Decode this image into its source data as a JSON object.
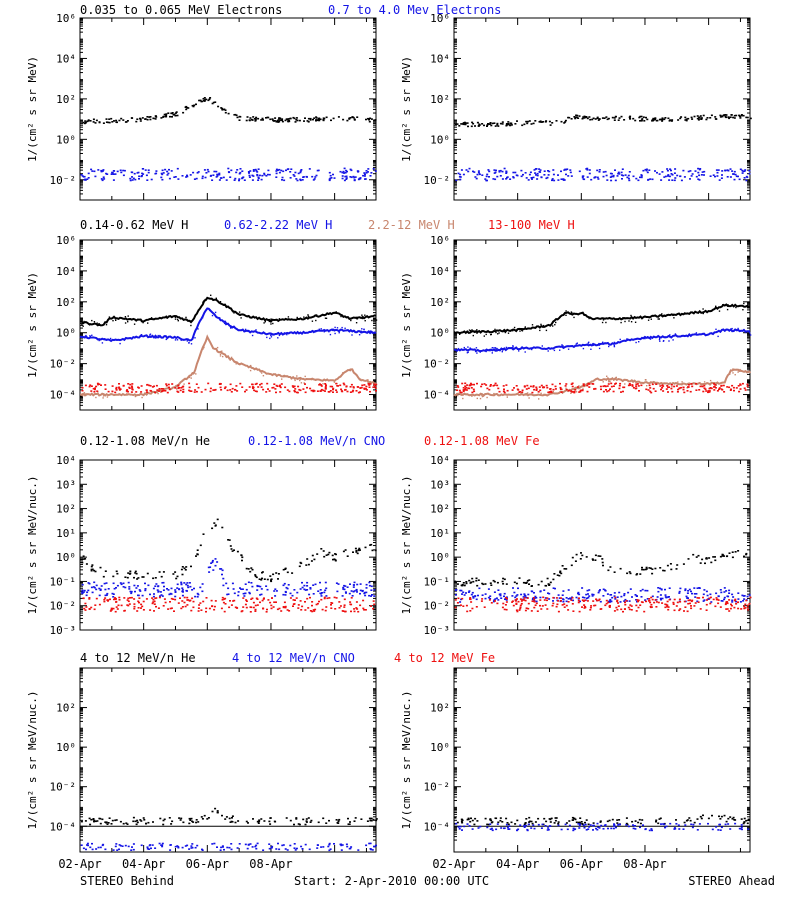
{
  "colors": {
    "black": "#000000",
    "blue": "#1414e6",
    "tan": "#c8866e",
    "red": "#ee1010",
    "background": "#ffffff"
  },
  "footer": {
    "left": "STEREO Behind",
    "center": "Start:  2-Apr-2010 00:00 UTC",
    "right": "STEREO Ahead"
  },
  "x_ticks": [
    "02-Apr",
    "04-Apr",
    "06-Apr",
    "08-Apr"
  ],
  "chart_data": [
    {
      "type": "scatter",
      "row": 1,
      "titles": [
        {
          "text": "0.035 to 0.065 MeV Electrons",
          "color": "black"
        },
        {
          "text": "0.7 to 4.0 Mev Electrons",
          "color": "blue"
        }
      ],
      "ylabel": "1/(cm² s sr MeV)",
      "yscale": "log",
      "ylim": [
        0.001,
        1000000
      ],
      "yticks": [
        {
          "value": 0.01,
          "label": "10⁻²"
        },
        {
          "value": 1,
          "label": "10⁰"
        },
        {
          "value": 100,
          "label": "10²"
        },
        {
          "value": 10000,
          "label": "10⁴"
        },
        {
          "value": 1000000,
          "label": "10⁶"
        }
      ],
      "xlabel": "",
      "xlim_days": [
        0,
        9.3
      ],
      "panels": [
        {
          "side": "Behind",
          "series": [
            {
              "color": "black",
              "style": "noisy",
              "x": [
                0,
                1,
                2,
                3,
                3.6,
                4.0,
                4.3,
                4.6,
                5.0,
                6,
                7,
                8,
                9.3
              ],
              "y": [
                8,
                9,
                11,
                20,
                60,
                120,
                50,
                20,
                12,
                10,
                10,
                12,
                10
              ]
            },
            {
              "color": "blue",
              "style": "band",
              "x": [
                0,
                9.3
              ],
              "y": [
                0.02,
                0.02
              ]
            }
          ]
        },
        {
          "side": "Ahead",
          "series": [
            {
              "color": "black",
              "style": "noisy",
              "x": [
                0,
                1,
                2,
                3,
                3.5,
                3.6,
                5,
                7,
                8.5,
                9.3
              ],
              "y": [
                6,
                6,
                7,
                7,
                8,
                14,
                12,
                11,
                15,
                14
              ]
            },
            {
              "color": "blue",
              "style": "band",
              "x": [
                0,
                9.3
              ],
              "y": [
                0.02,
                0.02
              ]
            }
          ]
        }
      ]
    },
    {
      "type": "scatter",
      "row": 2,
      "titles": [
        {
          "text": "0.14-0.62 MeV H",
          "color": "black"
        },
        {
          "text": "0.62-2.22 MeV H",
          "color": "blue"
        },
        {
          "text": "2.2-12 MeV H",
          "color": "tan"
        },
        {
          "text": "13-100 MeV H",
          "color": "red"
        }
      ],
      "ylabel": "1/(cm² s sr MeV)",
      "yscale": "log",
      "ylim": [
        1e-05,
        1000000
      ],
      "yticks": [
        {
          "value": 0.0001,
          "label": "10⁻⁴"
        },
        {
          "value": 0.01,
          "label": "10⁻²"
        },
        {
          "value": 1,
          "label": "10⁰"
        },
        {
          "value": 100,
          "label": "10²"
        },
        {
          "value": 10000,
          "label": "10⁴"
        },
        {
          "value": 1000000,
          "label": "10⁶"
        }
      ],
      "xlabel": "",
      "xlim_days": [
        0,
        9.3
      ],
      "panels": [
        {
          "side": "Behind",
          "series": [
            {
              "color": "black",
              "style": "line",
              "x": [
                0,
                0.7,
                1,
                2,
                3,
                3.5,
                3.8,
                4.0,
                4.3,
                4.7,
                5,
                6,
                7,
                8,
                8.5,
                9.3
              ],
              "y": [
                5,
                3,
                10,
                6,
                12,
                5,
                50,
                200,
                120,
                40,
                15,
                6,
                8,
                20,
                8,
                12
              ]
            },
            {
              "color": "blue",
              "style": "line",
              "x": [
                0,
                1,
                2,
                3,
                3.5,
                3.8,
                4.0,
                4.3,
                4.7,
                5,
                6,
                7,
                8,
                9.3
              ],
              "y": [
                0.6,
                0.3,
                0.6,
                0.5,
                0.3,
                8,
                40,
                10,
                3,
                1.5,
                0.8,
                1,
                1.5,
                1
              ]
            },
            {
              "color": "tan",
              "style": "line",
              "x": [
                0,
                1,
                2,
                3,
                3.6,
                3.8,
                4.0,
                4.2,
                4.6,
                5,
                6,
                7,
                8,
                8.5,
                8.8,
                9.3
              ],
              "y": [
                0.0001,
                0.0001,
                0.0001,
                0.0003,
                0.003,
                0.05,
                0.5,
                0.1,
                0.03,
                0.01,
                0.002,
                0.001,
                0.0008,
                0.005,
                0.001,
                0.0005
              ]
            },
            {
              "color": "red",
              "style": "band",
              "x": [
                0,
                9.3
              ],
              "y": [
                0.0003,
                0.0003
              ]
            }
          ]
        },
        {
          "side": "Ahead",
          "series": [
            {
              "color": "black",
              "style": "line",
              "x": [
                0,
                1,
                2,
                3,
                3.5,
                3.8,
                4.0,
                4.3,
                5,
                6,
                7,
                8,
                8.5,
                9.3
              ],
              "y": [
                1,
                1.2,
                1.5,
                3,
                20,
                15,
                20,
                8,
                8,
                10,
                15,
                25,
                60,
                50
              ]
            },
            {
              "color": "blue",
              "style": "line",
              "x": [
                0,
                1,
                2,
                3,
                4,
                5,
                6,
                7,
                8,
                8.5,
                9.3
              ],
              "y": [
                0.08,
                0.07,
                0.1,
                0.1,
                0.15,
                0.2,
                0.5,
                0.6,
                0.8,
                1.5,
                1.3
              ]
            },
            {
              "color": "tan",
              "style": "line",
              "x": [
                0,
                2,
                3,
                4,
                4.5,
                5,
                6,
                7,
                8,
                8.5,
                8.7,
                9.3
              ],
              "y": [
                0.0001,
                0.0001,
                0.0001,
                0.0003,
                0.001,
                0.001,
                0.0006,
                0.0005,
                0.0005,
                0.0006,
                0.004,
                0.003
              ]
            },
            {
              "color": "red",
              "style": "band",
              "x": [
                0,
                9.3
              ],
              "y": [
                0.0003,
                0.0003
              ]
            }
          ]
        }
      ]
    },
    {
      "type": "scatter",
      "row": 3,
      "titles": [
        {
          "text": "0.12-1.08 MeV/n He",
          "color": "black"
        },
        {
          "text": "0.12-1.08 MeV/n CNO",
          "color": "blue"
        },
        {
          "text": "0.12-1.08 MeV Fe",
          "color": "red"
        }
      ],
      "ylabel": "1/(cm² s sr MeV/nuc.)",
      "yscale": "log",
      "ylim": [
        0.001,
        10000
      ],
      "yticks": [
        {
          "value": 0.001,
          "label": "10⁻³"
        },
        {
          "value": 0.01,
          "label": "10⁻²"
        },
        {
          "value": 0.1,
          "label": "10⁻¹"
        },
        {
          "value": 1,
          "label": "10⁰"
        },
        {
          "value": 10,
          "label": "10¹"
        },
        {
          "value": 100,
          "label": "10²"
        },
        {
          "value": 1000,
          "label": "10³"
        },
        {
          "value": 10000,
          "label": "10⁴"
        }
      ],
      "xlabel": "",
      "xlim_days": [
        0,
        9.3
      ],
      "panels": [
        {
          "side": "Behind",
          "series": [
            {
              "color": "black",
              "style": "sparse",
              "x": [
                0,
                0.5,
                1,
                2,
                3,
                3.5,
                3.8,
                4.0,
                4.3,
                4.6,
                5,
                5.5,
                6,
                7,
                7.5,
                8,
                8.5,
                9.3
              ],
              "y": [
                1,
                0.3,
                0.2,
                0.2,
                0.2,
                0.5,
                5,
                15,
                30,
                5,
                1,
                0.2,
                0.15,
                0.5,
                2,
                1,
                2,
                3
              ]
            },
            {
              "color": "blue",
              "style": "band",
              "x": [
                0,
                3.8,
                4.0,
                4.3,
                4.6,
                9.3
              ],
              "y": [
                0.05,
                0.05,
                0.3,
                0.6,
                0.05,
                0.05
              ]
            },
            {
              "color": "red",
              "style": "band",
              "x": [
                0,
                9.3
              ],
              "y": [
                0.012,
                0.012
              ]
            }
          ]
        },
        {
          "side": "Ahead",
          "series": [
            {
              "color": "black",
              "style": "sparse",
              "x": [
                0,
                1,
                2,
                3,
                3.5,
                4.0,
                4.5,
                5,
                6,
                7,
                7.5,
                8,
                8.5,
                9.3
              ],
              "y": [
                0.1,
                0.1,
                0.1,
                0.1,
                0.5,
                1.5,
                1,
                0.3,
                0.3,
                0.5,
                1,
                0.8,
                1.5,
                1.2
              ]
            },
            {
              "color": "blue",
              "style": "band",
              "x": [
                0,
                9.3
              ],
              "y": [
                0.03,
                0.03
              ]
            },
            {
              "color": "red",
              "style": "band",
              "x": [
                0,
                9.3
              ],
              "y": [
                0.012,
                0.012
              ]
            }
          ]
        }
      ]
    },
    {
      "type": "scatter",
      "row": 4,
      "titles": [
        {
          "text": "4 to 12 MeV/n He",
          "color": "black"
        },
        {
          "text": "4 to 12 MeV/n CNO",
          "color": "blue"
        },
        {
          "text": "4 to 12 MeV Fe",
          "color": "red"
        }
      ],
      "ylabel": "1/(cm² s sr MeV/nuc.)",
      "yscale": "log",
      "ylim": [
        5e-06,
        10000
      ],
      "yticks": [
        {
          "value": 0.0001,
          "label": "10⁻⁴"
        },
        {
          "value": 0.01,
          "label": "10⁻²"
        },
        {
          "value": 1,
          "label": "10⁰"
        },
        {
          "value": 100,
          "label": "10²"
        }
      ],
      "xlabel": "",
      "xlim_days": [
        0,
        9.3
      ],
      "panels": [
        {
          "side": "Behind",
          "series": [
            {
              "color": "black",
              "style": "sparse",
              "x": [
                0,
                1,
                2,
                3,
                3.5,
                4.0,
                4.2,
                4.5,
                5,
                6,
                7,
                8,
                9.3
              ],
              "y": [
                0.0002,
                0.0002,
                0.0002,
                0.0002,
                0.0002,
                0.0003,
                0.0006,
                0.0003,
                0.0002,
                0.0002,
                0.0002,
                0.0002,
                0.0002
              ]
            },
            {
              "color": "black",
              "style": "hline",
              "x": [
                0,
                9.3
              ],
              "y": [
                0.0001,
                0.0001
              ]
            },
            {
              "color": "blue",
              "style": "sparse",
              "x": [
                0,
                9.3
              ],
              "y": [
                1e-05,
                1e-05
              ]
            }
          ]
        },
        {
          "side": "Ahead",
          "series": [
            {
              "color": "black",
              "style": "sparse",
              "x": [
                0,
                2,
                4,
                6,
                7,
                8,
                9.3
              ],
              "y": [
                0.0002,
                0.0002,
                0.0002,
                0.0002,
                0.0002,
                0.0003,
                0.0002
              ]
            },
            {
              "color": "black",
              "style": "hline",
              "x": [
                0,
                9.3
              ],
              "y": [
                0.0001,
                0.0001
              ]
            },
            {
              "color": "blue",
              "style": "sparse",
              "x": [
                0,
                9.3
              ],
              "y": [
                0.0001,
                0.0001
              ]
            }
          ]
        }
      ]
    }
  ]
}
